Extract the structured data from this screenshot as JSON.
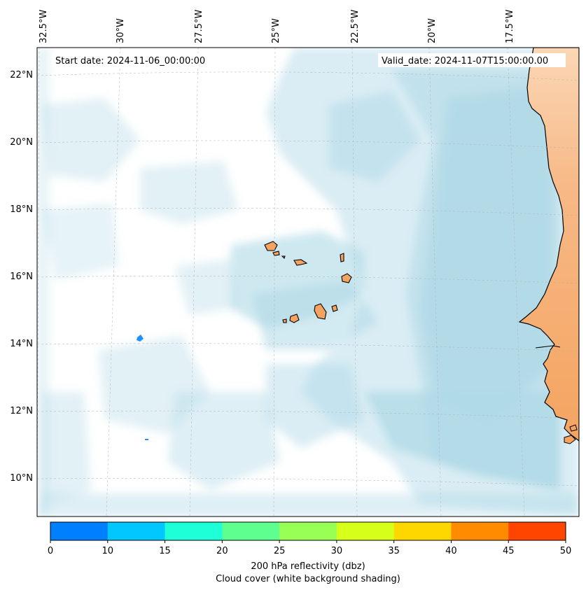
{
  "header": {
    "start_date": "Start date: 2024-11-06_00:00:00",
    "valid_date": "Valid_date: 2024-11-07T15:00:00.00"
  },
  "axes": {
    "lon_labels": [
      "32.5°W",
      "30°W",
      "27.5°W",
      "25°W",
      "22.5°W",
      "20°W",
      "17.5°W"
    ],
    "lat_labels": [
      "22°N",
      "20°N",
      "18°N",
      "16°N",
      "14°N",
      "12°N",
      "10°N"
    ]
  },
  "colorbar": {
    "ticks": [
      "0",
      "10",
      "15",
      "20",
      "25",
      "30",
      "35",
      "40",
      "45",
      "50"
    ],
    "colors": [
      "#0080ff",
      "#00c8ff",
      "#1effd8",
      "#5eff8e",
      "#98ff55",
      "#d6ff1a",
      "#ffd700",
      "#ff8c00",
      "#ff4500"
    ],
    "label_line1": "200 hPa reflectivity (dbz)",
    "label_line2": "Cloud cover (white background shading)"
  },
  "style": {
    "land_color": "#f4a460",
    "cloud_color": "#add8e6",
    "reflectivity_cell_color": "#1e90ff"
  }
}
